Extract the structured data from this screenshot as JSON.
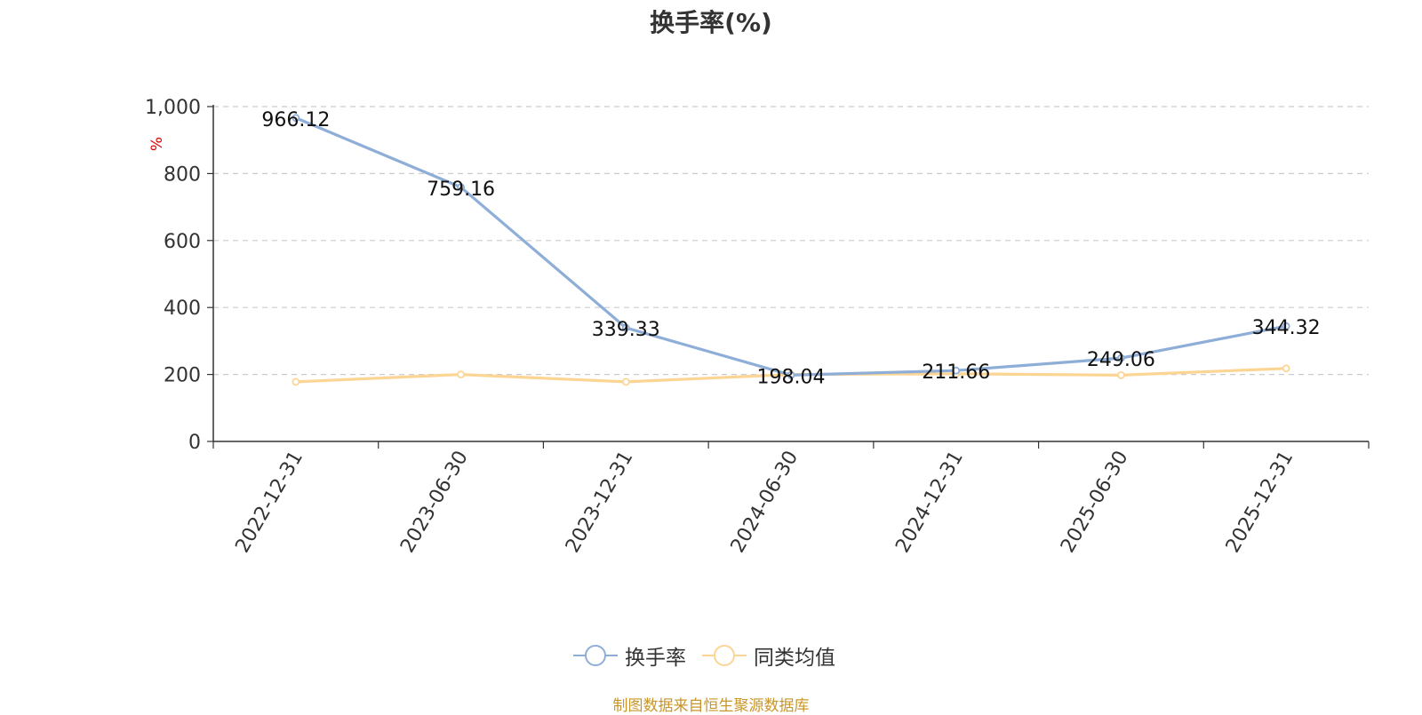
{
  "title": "换手率(%)",
  "source": "制图数据来自恒生聚源数据库",
  "chart_data": {
    "type": "line",
    "x": [
      "2022-12-31",
      "2023-06-30",
      "2023-12-31",
      "2024-06-30",
      "2024-12-31",
      "2025-06-30",
      "2025-12-31"
    ],
    "ylabel": "%",
    "ylim": [
      0,
      1000
    ],
    "yticks": [
      0,
      200,
      400,
      600,
      800,
      1000
    ],
    "ytick_labels": [
      "0",
      "200",
      "400",
      "600",
      "800",
      "1,000"
    ],
    "grid": true,
    "legend_position": "bottom",
    "series": [
      {
        "name": "换手率",
        "color": "#8eaed8",
        "values": [
          966.12,
          759.16,
          339.33,
          198.04,
          211.66,
          249.06,
          344.32
        ],
        "labels": [
          "966.12",
          "759.16",
          "339.33",
          "198.04",
          "211.66",
          "249.06",
          "344.32"
        ]
      },
      {
        "name": "同类均值",
        "color": "#fcd594",
        "values": [
          178,
          200,
          178,
          200,
          202,
          198,
          218
        ]
      }
    ]
  }
}
